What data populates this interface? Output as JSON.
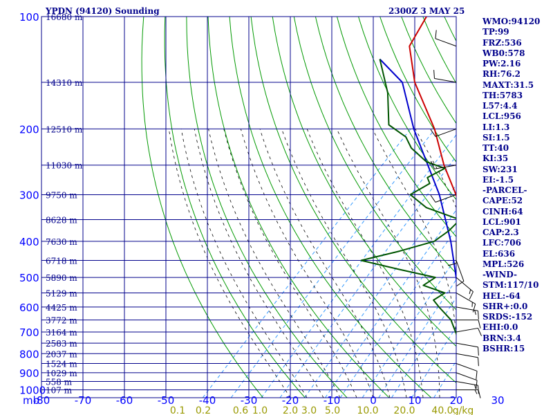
{
  "header": {
    "station_title": "YPDN (94120) Sounding",
    "time_title": "2300Z  3 MAY 25"
  },
  "stats": [
    "WMO:94120",
    "TP:99",
    "FRZ:536",
    "WB0:578",
    "PW:2.16",
    "RH:76.2",
    "MAXT:31.5",
    "TH:5783",
    "L57:4.4",
    "LCL:956",
    "LI:1.3",
    "SI:1.5",
    "TT:40",
    "KI:35",
    "SW:231",
    "EI:-1.5",
    "-PARCEL-",
    "CAPE:52",
    "CINH:64",
    "LCL:901",
    "CAP:2.3",
    "LFC:706",
    "EL:636",
    "MPL:526",
    "-WIND-",
    "STM:117/10",
    "HEL:-64",
    "SHR+:0.0",
    "SRDS:-152",
    "EHI:0.0",
    "BRN:3.4",
    "BSHR:15"
  ],
  "colors": {
    "grid": "#00008b",
    "dry_adiabat": "#009900",
    "moist_adiabat": "#000000",
    "mixing_ratio": "#3399ff",
    "temperature": "#cc0000",
    "parcel": "#0000cc",
    "dewpoint": "#005500",
    "wind_barb": "#000000",
    "axis_text_blue": "#0000ff",
    "axis_text_mixing": "#999900"
  },
  "chart_data": {
    "type": "line",
    "title": "YPDN (94120) Sounding",
    "pressure_axis": {
      "unit_label": "mb",
      "levels": [
        100,
        200,
        300,
        400,
        500,
        600,
        700,
        800,
        900,
        1000
      ]
    },
    "temperature_axis": {
      "ticks": [
        -80,
        -70,
        -60,
        -50,
        -40,
        -30,
        -20,
        -10,
        0,
        10,
        20,
        30
      ]
    },
    "height_labels": [
      {
        "p": 100,
        "label": "16680 m"
      },
      {
        "p": 150,
        "label": "14310 m"
      },
      {
        "p": 200,
        "label": "12510 m"
      },
      {
        "p": 250,
        "label": "11030 m"
      },
      {
        "p": 300,
        "label": "9750 m"
      },
      {
        "p": 350,
        "label": "8628 m"
      },
      {
        "p": 400,
        "label": "7630 m"
      },
      {
        "p": 450,
        "label": "6718 m"
      },
      {
        "p": 500,
        "label": "5890 m"
      },
      {
        "p": 550,
        "label": "5129 m"
      },
      {
        "p": 600,
        "label": "4425 m"
      },
      {
        "p": 650,
        "label": "3772 m"
      },
      {
        "p": 700,
        "label": "3164 m"
      },
      {
        "p": 750,
        "label": "2583 m"
      },
      {
        "p": 800,
        "label": "2037 m"
      },
      {
        "p": 850,
        "label": "1524 m"
      },
      {
        "p": 900,
        "label": "1029 m"
      },
      {
        "p": 950,
        "label": "558 m"
      },
      {
        "p": 1000,
        "label": "107 m"
      }
    ],
    "mixing_ratio_labels": [
      "0.1",
      "0.2",
      "0.6",
      "1.0",
      "2.0",
      "3.0",
      "5.0",
      "10.0",
      "20.0",
      "40.0",
      "g/kg"
    ],
    "temperature": [
      {
        "p": 1005,
        "t": 28
      },
      {
        "p": 1000,
        "t": 27
      },
      {
        "p": 975,
        "t": 25
      },
      {
        "p": 950,
        "t": 23
      },
      {
        "p": 925,
        "t": 21
      },
      {
        "p": 900,
        "t": 18
      },
      {
        "p": 850,
        "t": 15
      },
      {
        "p": 800,
        "t": 12
      },
      {
        "p": 700,
        "t": 7
      },
      {
        "p": 650,
        "t": 3
      },
      {
        "p": 600,
        "t": 0
      },
      {
        "p": 550,
        "t": -3
      },
      {
        "p": 500,
        "t": -7
      },
      {
        "p": 450,
        "t": -12
      },
      {
        "p": 400,
        "t": -16
      },
      {
        "p": 350,
        "t": -21
      },
      {
        "p": 300,
        "t": -29
      },
      {
        "p": 250,
        "t": -39
      },
      {
        "p": 200,
        "t": -50
      },
      {
        "p": 150,
        "t": -66
      },
      {
        "p": 120,
        "t": -76
      },
      {
        "p": 100,
        "t": -79
      }
    ],
    "parcel": [
      {
        "p": 1005,
        "t": 28
      },
      {
        "p": 960,
        "t": 25
      },
      {
        "p": 900,
        "t": 19
      },
      {
        "p": 850,
        "t": 16
      },
      {
        "p": 800,
        "t": 12
      },
      {
        "p": 700,
        "t": 6
      },
      {
        "p": 600,
        "t": -1
      },
      {
        "p": 500,
        "t": -9
      },
      {
        "p": 400,
        "t": -19
      },
      {
        "p": 300,
        "t": -33
      },
      {
        "p": 200,
        "t": -55
      },
      {
        "p": 150,
        "t": -69
      },
      {
        "p": 130,
        "t": -80
      }
    ],
    "dewpoint": [
      {
        "p": 1005,
        "t": 22
      },
      {
        "p": 1000,
        "t": 20
      },
      {
        "p": 950,
        "t": 19
      },
      {
        "p": 900,
        "t": 16
      },
      {
        "p": 850,
        "t": 15
      },
      {
        "p": 800,
        "t": 11
      },
      {
        "p": 750,
        "t": 8
      },
      {
        "p": 700,
        "t": 4
      },
      {
        "p": 650,
        "t": 0
      },
      {
        "p": 600,
        "t": -6
      },
      {
        "p": 575,
        "t": -9
      },
      {
        "p": 550,
        "t": -8
      },
      {
        "p": 525,
        "t": -15
      },
      {
        "p": 500,
        "t": -14
      },
      {
        "p": 475,
        "t": -25
      },
      {
        "p": 450,
        "t": -36
      },
      {
        "p": 425,
        "t": -29
      },
      {
        "p": 400,
        "t": -23
      },
      {
        "p": 375,
        "t": -22
      },
      {
        "p": 350,
        "t": -22
      },
      {
        "p": 325,
        "t": -33
      },
      {
        "p": 300,
        "t": -40
      },
      {
        "p": 280,
        "t": -38
      },
      {
        "p": 270,
        "t": -40
      },
      {
        "p": 255,
        "t": -38
      },
      {
        "p": 245,
        "t": -44
      },
      {
        "p": 225,
        "t": -51
      },
      {
        "p": 210,
        "t": -55
      },
      {
        "p": 195,
        "t": -62
      },
      {
        "p": 160,
        "t": -70
      },
      {
        "p": 130,
        "t": -80
      }
    ],
    "wind_barbs": [
      {
        "p": 1000,
        "dir": 90,
        "spd": 15
      },
      {
        "p": 950,
        "dir": 100,
        "spd": 15
      },
      {
        "p": 900,
        "dir": 110,
        "spd": 10
      },
      {
        "p": 850,
        "dir": 110,
        "spd": 10
      },
      {
        "p": 800,
        "dir": 100,
        "spd": 10
      },
      {
        "p": 750,
        "dir": 100,
        "spd": 10
      },
      {
        "p": 700,
        "dir": 80,
        "spd": 10
      },
      {
        "p": 650,
        "dir": 90,
        "spd": 10
      },
      {
        "p": 600,
        "dir": 100,
        "spd": 15
      },
      {
        "p": 550,
        "dir": 120,
        "spd": 15
      },
      {
        "p": 500,
        "dir": 130,
        "spd": 15
      },
      {
        "p": 450,
        "dir": 160,
        "spd": 10
      },
      {
        "p": 400,
        "dir": 180,
        "spd": 10
      },
      {
        "p": 300,
        "dir": 250,
        "spd": 10
      },
      {
        "p": 250,
        "dir": 260,
        "spd": 10
      },
      {
        "p": 200,
        "dir": 250,
        "spd": 10
      },
      {
        "p": 150,
        "dir": 280,
        "spd": 10
      },
      {
        "p": 120,
        "dir": 290,
        "spd": 10
      }
    ]
  }
}
